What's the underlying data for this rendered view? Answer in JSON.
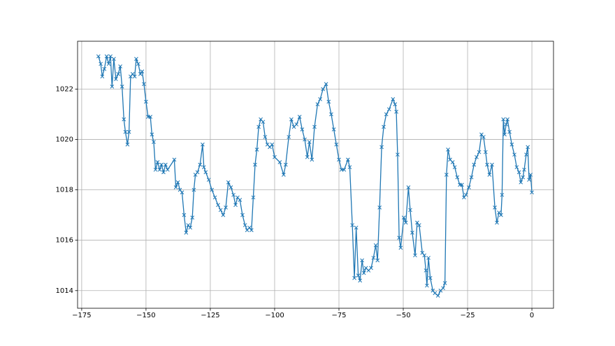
{
  "chart_data": {
    "type": "line",
    "x": [
      -168.5,
      -167.6,
      -167,
      -166.2,
      -165.3,
      -164.5,
      -163.8,
      -163.2,
      -162.5,
      -161.7,
      -160.8,
      -160,
      -159.3,
      -158.6,
      -158,
      -157.2,
      -156.6,
      -156,
      -155.2,
      -154.4,
      -153.8,
      -153,
      -152.2,
      -151.5,
      -150.8,
      -150,
      -149.2,
      -148.3,
      -147.7,
      -147,
      -146.3,
      -145.5,
      -144.7,
      -144,
      -143.2,
      -142.4,
      -141.6,
      -139,
      -138.4,
      -137.6,
      -136.8,
      -136,
      -135.2,
      -134.4,
      -133.6,
      -132.8,
      -132,
      -131.4,
      -130.8,
      -130,
      -129,
      -128,
      -127.5,
      -126.8,
      -125.6,
      -124.4,
      -123.2,
      -122,
      -121,
      -120,
      -119,
      -118,
      -117,
      -116,
      -115.2,
      -114.4,
      -113.5,
      -112.5,
      -111.5,
      -110.7,
      -109.8,
      -109,
      -108.3,
      -107.6,
      -106.9,
      -106.2,
      -105.4,
      -104.5,
      -103.7,
      -102.8,
      -101.9,
      -101,
      -100,
      -98,
      -96.5,
      -95.7,
      -94.5,
      -93.5,
      -92.5,
      -91.5,
      -90.3,
      -89.3,
      -88.3,
      -87.3,
      -86.5,
      -85.5,
      -84.5,
      -83.3,
      -82.3,
      -81.2,
      -80,
      -79,
      -78,
      -77,
      -76,
      -75,
      -74,
      -73,
      -71.5,
      -70.8,
      -69.8,
      -69,
      -68.3,
      -67.5,
      -66.8,
      -66,
      -65.3,
      -64.5,
      -63.5,
      -62.5,
      -61.6,
      -60.7,
      -60,
      -59.2,
      -58.4,
      -57.6,
      -56.6,
      -55.5,
      -54,
      -53.2,
      -52.7,
      -52.2,
      -51.6,
      -51,
      -49.8,
      -49,
      -48,
      -47.3,
      -46.5,
      -45.4,
      -44.6,
      -43.8,
      -42.6,
      -41.8,
      -41.2,
      -40.8,
      -40.2,
      -39.5,
      -38.5,
      -37.7,
      -36.5,
      -35.5,
      -34.5,
      -33.8,
      -33.2,
      -32.6,
      -31.8,
      -30.8,
      -30,
      -29,
      -28,
      -27.2,
      -26.4,
      -25.6,
      -24.5,
      -23.5,
      -22.5,
      -21.5,
      -20.5,
      -19.6,
      -18.8,
      -18,
      -17.4,
      -16.5,
      -15.5,
      -14.4,
      -13.6,
      -12.8,
      -12,
      -11.6,
      -11.1,
      -10.6,
      -10,
      -9.5,
      -8.7,
      -7.8,
      -6.8,
      -5.9,
      -5,
      -4.3,
      -3.5,
      -3,
      -2.2,
      -1.6,
      -1.1,
      -0.5,
      0
    ],
    "series": [
      {
        "color": "#1f77b4",
        "marker": "x",
        "values": [
          1023.3,
          1023.0,
          1022.5,
          1022.8,
          1023.3,
          1023.0,
          1023.3,
          1022.1,
          1023.2,
          1022.4,
          1022.6,
          1022.9,
          1022.1,
          1020.8,
          1020.3,
          1019.8,
          1020.3,
          1022.5,
          1022.6,
          1022.5,
          1023.2,
          1023.0,
          1022.6,
          1022.7,
          1022.2,
          1021.5,
          1020.9,
          1020.9,
          1020.2,
          1019.9,
          1018.8,
          1019.1,
          1018.8,
          1019.0,
          1018.7,
          1019.0,
          1018.8,
          1019.2,
          1018.1,
          1018.3,
          1018.0,
          1017.9,
          1017.0,
          1016.3,
          1016.6,
          1016.5,
          1016.9,
          1018.0,
          1018.6,
          1018.7,
          1019.0,
          1019.8,
          1018.9,
          1018.7,
          1018.4,
          1018.0,
          1017.7,
          1017.4,
          1017.2,
          1017.0,
          1017.3,
          1018.3,
          1018.1,
          1017.8,
          1017.4,
          1017.7,
          1017.6,
          1017.0,
          1016.6,
          1016.4,
          1016.5,
          1016.4,
          1017.7,
          1019.0,
          1019.6,
          1020.5,
          1020.8,
          1020.7,
          1020.1,
          1019.8,
          1019.7,
          1019.8,
          1019.3,
          1019.1,
          1018.6,
          1019.0,
          1020.1,
          1020.8,
          1020.5,
          1020.6,
          1020.9,
          1020.4,
          1020.0,
          1019.3,
          1019.9,
          1019.2,
          1020.5,
          1021.4,
          1021.6,
          1022.0,
          1022.2,
          1021.5,
          1021.0,
          1020.4,
          1019.8,
          1019.2,
          1018.8,
          1018.8,
          1019.2,
          1018.9,
          1016.6,
          1014.5,
          1016.5,
          1014.6,
          1014.4,
          1015.2,
          1014.7,
          1014.9,
          1014.8,
          1014.9,
          1015.3,
          1015.8,
          1015.2,
          1017.3,
          1019.7,
          1020.5,
          1021.0,
          1021.2,
          1021.6,
          1021.4,
          1021.1,
          1019.4,
          1016.1,
          1015.7,
          1016.9,
          1016.7,
          1018.1,
          1017.2,
          1016.3,
          1015.4,
          1016.7,
          1016.6,
          1015.5,
          1015.4,
          1014.8,
          1014.2,
          1015.3,
          1014.5,
          1014.0,
          1013.9,
          1013.8,
          1014.0,
          1014.1,
          1014.3,
          1018.6,
          1019.6,
          1019.2,
          1019.1,
          1018.9,
          1018.5,
          1018.2,
          1018.2,
          1017.7,
          1017.8,
          1018.1,
          1018.5,
          1019.0,
          1019.3,
          1019.5,
          1020.2,
          1020.1,
          1019.5,
          1019.0,
          1018.6,
          1019.0,
          1017.3,
          1016.7,
          1017.1,
          1017.0,
          1017.8,
          1020.8,
          1020.2,
          1020.6,
          1020.8,
          1020.3,
          1019.8,
          1019.4,
          1018.9,
          1018.7,
          1018.3,
          1018.5,
          1018.8,
          1019.4,
          1019.7,
          1018.4,
          1018.6,
          1017.9
        ]
      }
    ],
    "xlim": [
      -176.6,
      8.4
    ],
    "ylim": [
      1013.3,
      1023.9
    ],
    "xticks": [
      {
        "value": -175,
        "label": "−175"
      },
      {
        "value": -150,
        "label": "−150"
      },
      {
        "value": -125,
        "label": "−125"
      },
      {
        "value": -100,
        "label": "−100"
      },
      {
        "value": -75,
        "label": "−75"
      },
      {
        "value": -50,
        "label": "−50"
      },
      {
        "value": -25,
        "label": "−25"
      },
      0
    ],
    "yticks": [
      1014,
      1016,
      1018,
      1020,
      1022
    ],
    "grid": true
  }
}
